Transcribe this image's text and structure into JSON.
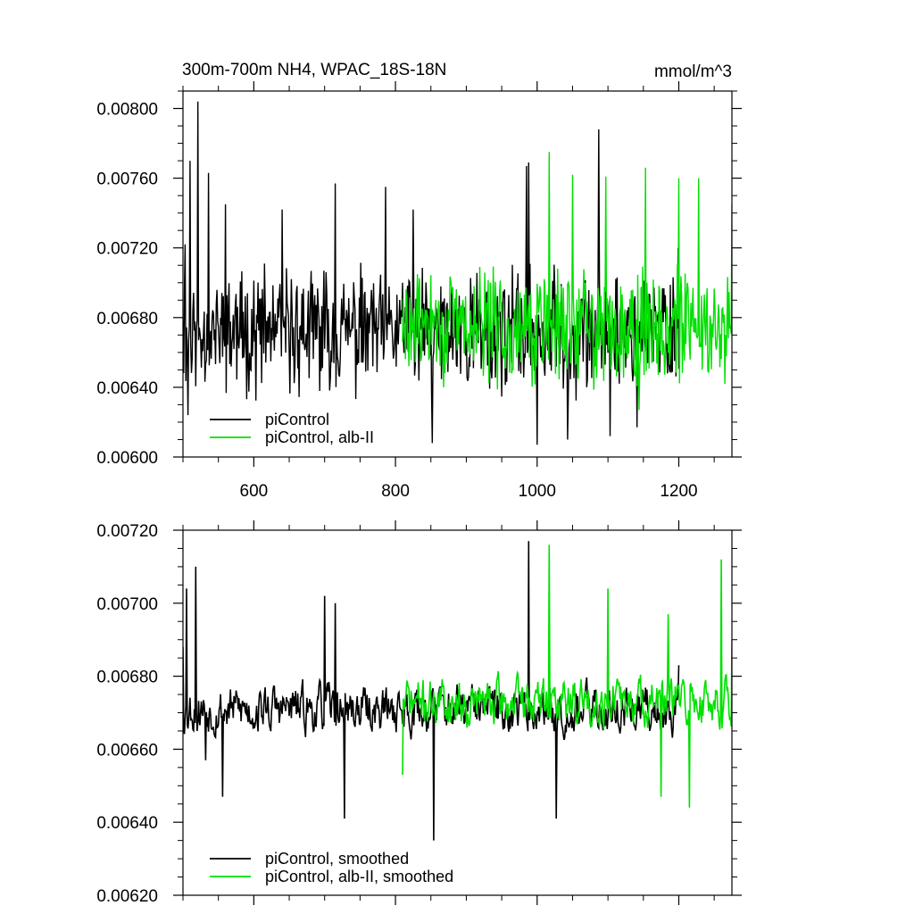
{
  "header": {
    "title": "300m-700m NH4, WPAC_18S-18N",
    "units": "mmol/m^3"
  },
  "chart_data": [
    {
      "type": "line",
      "title": "300m-700m NH4, WPAC_18S-18N",
      "units": "mmol/m^3",
      "xlim": [
        500,
        1275
      ],
      "ylim": [
        0.006,
        0.0081
      ],
      "xticks": [
        600,
        800,
        1000,
        1200
      ],
      "xtick_labels": [
        "600",
        "800",
        "1000",
        "1200"
      ],
      "yticks": [
        0.006,
        0.0064,
        0.0068,
        0.0072,
        0.0076,
        0.008
      ],
      "ytick_labels": [
        "0.00600",
        "0.00640",
        "0.00680",
        "0.00720",
        "0.00760",
        "0.00800"
      ],
      "grid": false,
      "legend_position": "bottom-left",
      "series": [
        {
          "name": "piControl",
          "color": "#000000",
          "x_start": 500,
          "x_end": 1200,
          "mean": 0.00672,
          "spread": 0.00026,
          "seed": 11,
          "peaks": [
            [
              500,
              0.00678
            ],
            [
              503,
              0.00722
            ],
            [
              507,
              0.00624
            ],
            [
              510,
              0.0077
            ],
            [
              521,
              0.00804
            ],
            [
              536,
              0.00763
            ],
            [
              560,
              0.00745
            ],
            [
              640,
              0.00742
            ],
            [
              715,
              0.00757
            ],
            [
              786,
              0.00755
            ],
            [
              810,
              0.007
            ],
            [
              825,
              0.00742
            ],
            [
              852,
              0.00608
            ],
            [
              985,
              0.00767
            ],
            [
              988,
              0.00769
            ],
            [
              1000,
              0.00607
            ],
            [
              1043,
              0.0061
            ],
            [
              1087,
              0.00788
            ],
            [
              1103,
              0.00612
            ],
            [
              1141,
              0.00617
            ],
            [
              1199,
              0.0072
            ]
          ]
        },
        {
          "name": "piControl, alb-II",
          "color": "#00e000",
          "x_start": 810,
          "x_end": 1275,
          "mean": 0.00675,
          "spread": 0.00024,
          "seed": 29,
          "peaks": [
            [
              810,
              0.00666
            ],
            [
              1017,
              0.00775
            ],
            [
              1050,
              0.00762
            ],
            [
              1097,
              0.00761
            ],
            [
              1153,
              0.00766
            ],
            [
              1200,
              0.0076
            ],
            [
              1228,
              0.0076
            ],
            [
              1144,
              0.00627
            ],
            [
              1265,
              0.00642
            ],
            [
              1275,
              0.00745
            ]
          ]
        }
      ]
    },
    {
      "type": "line",
      "xlim": [
        500,
        1275
      ],
      "ylim": [
        0.0062,
        0.0072
      ],
      "xticks": [
        600,
        800,
        1000,
        1200
      ],
      "yticks": [
        0.0062,
        0.0064,
        0.0066,
        0.0068,
        0.007,
        0.0072
      ],
      "ytick_labels": [
        "0.00620",
        "0.00640",
        "0.00660",
        "0.00680",
        "0.00700",
        "0.00720"
      ],
      "grid": false,
      "legend_position": "bottom-left",
      "series": [
        {
          "name": "piControl, smoothed",
          "color": "#000000",
          "x_start": 500,
          "x_end": 1200,
          "mean": 0.00671,
          "spread": 0.00011,
          "seed": 53,
          "peaks": [
            [
              500,
              0.00688
            ],
            [
              505,
              0.00704
            ],
            [
              518,
              0.0071
            ],
            [
              520,
              0.00665
            ],
            [
              532,
              0.00657
            ],
            [
              556,
              0.00647
            ],
            [
              700,
              0.00702
            ],
            [
              715,
              0.007
            ],
            [
              728,
              0.00641
            ],
            [
              854,
              0.00635
            ],
            [
              988,
              0.00717
            ],
            [
              1027,
              0.00641
            ],
            [
              1200,
              0.00683
            ]
          ]
        },
        {
          "name": "piControl, alb-II, smoothed",
          "color": "#00e000",
          "x_start": 810,
          "x_end": 1275,
          "mean": 0.00673,
          "spread": 0.00011,
          "seed": 71,
          "peaks": [
            [
              810,
              0.00653
            ],
            [
              1017,
              0.00716
            ],
            [
              1100,
              0.00704
            ],
            [
              1175,
              0.00647
            ],
            [
              1185,
              0.00697
            ],
            [
              1215,
              0.00644
            ],
            [
              1260,
              0.00712
            ],
            [
              1275,
              0.0069
            ]
          ]
        }
      ]
    }
  ]
}
